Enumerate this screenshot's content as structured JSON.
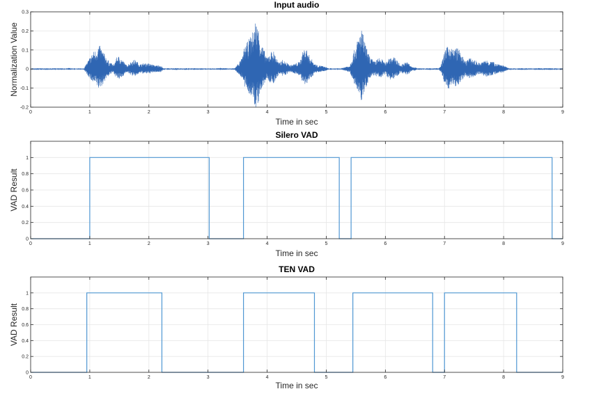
{
  "colors": {
    "line": "#4f97d3",
    "waveform": "#2f66b3",
    "axis": "#262626",
    "grid": "#e6e6e6"
  },
  "chart_data": [
    {
      "type": "line",
      "title": "Input audio",
      "xlabel": "Time in sec",
      "ylabel": "Normalization Value",
      "xlim": [
        0,
        9
      ],
      "ylim": [
        -0.2,
        0.3
      ],
      "xticks": [
        "0",
        "1",
        "2",
        "3",
        "4",
        "5",
        "6",
        "7",
        "8",
        "9"
      ],
      "yticks": [
        "-0.2",
        "-0.1",
        "0",
        "0.1",
        "0.2",
        "0.3"
      ],
      "series": [
        {
          "envelope_x": [
            0,
            0.6,
            0.65,
            0.72,
            0.9,
            0.98,
            1.05,
            1.1,
            1.15,
            1.2,
            1.3,
            1.4,
            1.45,
            1.5,
            1.55,
            1.62,
            1.7,
            1.75,
            1.8,
            1.85,
            1.9,
            2.0,
            2.1,
            2.2,
            2.25,
            2.9,
            3.15,
            3.2,
            3.35,
            3.45,
            3.58,
            3.62,
            3.68,
            3.75,
            3.8,
            3.85,
            3.9,
            4.0,
            4.05,
            4.1,
            4.15,
            4.2,
            4.25,
            4.3,
            4.35,
            4.4,
            4.55,
            4.6,
            4.65,
            4.7,
            4.8,
            4.85,
            4.9,
            5.0,
            5.05,
            5.2,
            5.25,
            5.4,
            5.45,
            5.5,
            5.55,
            5.6,
            5.65,
            5.7,
            5.8,
            5.85,
            5.9,
            5.95,
            6.0,
            6.05,
            6.1,
            6.2,
            6.25,
            6.3,
            6.35,
            6.4,
            6.45,
            6.5,
            6.55,
            6.9,
            6.95,
            7.0,
            7.05,
            7.1,
            7.15,
            7.2,
            7.25,
            7.3,
            7.35,
            7.4,
            7.5,
            7.6,
            7.7,
            7.8,
            7.9,
            8.0,
            8.05,
            8.1,
            9.0
          ],
          "envelope_y": [
            0.002,
            0.002,
            0.006,
            0.002,
            0.003,
            0.05,
            0.09,
            0.1,
            0.13,
            0.11,
            0.05,
            0.02,
            0.06,
            0.07,
            0.05,
            0.02,
            0.04,
            0.05,
            0.04,
            0.025,
            0.03,
            0.03,
            0.02,
            0.02,
            0.002,
            0.002,
            0.003,
            0.006,
            0.003,
            0.004,
            0.06,
            0.12,
            0.15,
            0.19,
            0.26,
            0.22,
            0.14,
            0.06,
            0.09,
            0.1,
            0.07,
            0.03,
            0.05,
            0.04,
            0.03,
            0.02,
            0.04,
            0.09,
            0.12,
            0.08,
            0.03,
            0.02,
            0.02,
            0.01,
            0.002,
            0.002,
            0.004,
            0.02,
            0.08,
            0.12,
            0.18,
            0.21,
            0.15,
            0.09,
            0.04,
            0.05,
            0.06,
            0.05,
            0.03,
            0.06,
            0.07,
            0.05,
            0.02,
            0.03,
            0.04,
            0.03,
            0.01,
            0.01,
            0.002,
            0.002,
            0.03,
            0.09,
            0.12,
            0.13,
            0.1,
            0.12,
            0.1,
            0.07,
            0.04,
            0.06,
            0.05,
            0.03,
            0.05,
            0.04,
            0.03,
            0.02,
            0.01,
            0.002,
            0.002
          ]
        }
      ]
    },
    {
      "type": "line",
      "title": "Silero VAD",
      "xlabel": "Time in sec",
      "ylabel": "VAD Result",
      "xlim": [
        0,
        9
      ],
      "ylim": [
        0,
        1.2
      ],
      "xticks": [
        "0",
        "1",
        "2",
        "3",
        "4",
        "5",
        "6",
        "7",
        "8",
        "9"
      ],
      "yticks": [
        "0",
        "0.2",
        "0.4",
        "0.6",
        "0.8",
        "1"
      ],
      "series": [
        {
          "x": [
            0,
            1.0,
            1.0,
            3.02,
            3.02,
            3.6,
            3.6,
            5.22,
            5.22,
            5.42,
            5.42,
            8.82,
            8.82,
            9.0
          ],
          "y": [
            0,
            0,
            1,
            1,
            0,
            0,
            1,
            1,
            0,
            0,
            1,
            1,
            0,
            0
          ]
        }
      ]
    },
    {
      "type": "line",
      "title": "TEN VAD",
      "xlabel": "Time in sec",
      "ylabel": "VAD Result",
      "xlim": [
        0,
        9
      ],
      "ylim": [
        0,
        1.2
      ],
      "xticks": [
        "0",
        "1",
        "2",
        "3",
        "4",
        "5",
        "6",
        "7",
        "8",
        "9"
      ],
      "yticks": [
        "0",
        "0.2",
        "0.4",
        "0.6",
        "0.8",
        "1"
      ],
      "series": [
        {
          "x": [
            0,
            0.95,
            0.95,
            2.22,
            2.22,
            3.6,
            3.6,
            4.8,
            4.8,
            5.45,
            5.45,
            6.8,
            6.8,
            7.0,
            7.0,
            8.22,
            8.22,
            9.0
          ],
          "y": [
            0,
            0,
            1,
            1,
            0,
            0,
            1,
            1,
            0,
            0,
            1,
            1,
            0,
            0,
            1,
            1,
            0,
            0
          ]
        }
      ]
    }
  ]
}
